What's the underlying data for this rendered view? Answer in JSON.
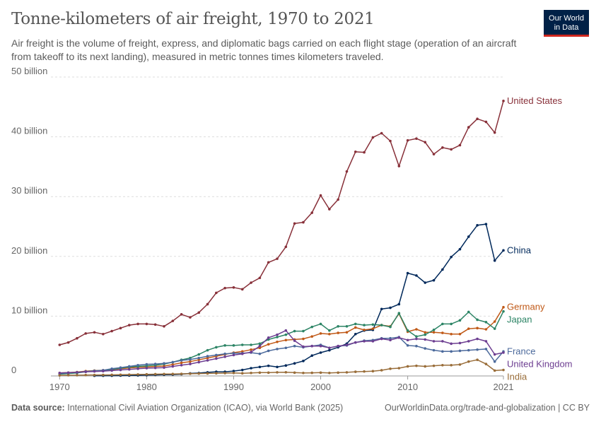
{
  "header": {
    "title": "Tonne-kilometers of air freight, 1970 to 2021",
    "subtitle": "Air freight is the volume of freight, express, and diplomatic bags carried on each flight stage (operation of an aircraft from takeoff to its next landing), measured in metric tonnes times kilometers traveled."
  },
  "logo": {
    "line1": "Our World",
    "line2": "in Data",
    "bg_color": "#002147",
    "accent_color": "#ce261e"
  },
  "footer": {
    "source_label": "Data source:",
    "source_text": "International Civil Aviation Organization (ICAO), via World Bank (2025)",
    "right_text": "OurWorldinData.org/trade-and-globalization | CC BY"
  },
  "chart_data": {
    "type": "line",
    "title": "Tonne-kilometers of air freight, 1970 to 2021",
    "xlabel": "",
    "ylabel": "",
    "xlim": [
      1969,
      2021
    ],
    "ylim": [
      0,
      50
    ],
    "yunit": "billion tonne-kilometers",
    "yticks": [
      0,
      10,
      20,
      30,
      40,
      50
    ],
    "ytick_labels": [
      "0",
      "10 billion",
      "20 billion",
      "30 billion",
      "40 billion",
      "50 billion"
    ],
    "xticks": [
      1970,
      1980,
      1990,
      2000,
      2010,
      2021
    ],
    "xtick_labels": [
      "1970",
      "1980",
      "1990",
      "2000",
      "2010",
      "2021"
    ],
    "grid": "horizontal dashed",
    "legend": "line-end labels",
    "series": [
      {
        "name": "United States",
        "color": "#883039",
        "x": [
          1970,
          1971,
          1972,
          1973,
          1974,
          1975,
          1976,
          1977,
          1978,
          1979,
          1980,
          1981,
          1982,
          1983,
          1984,
          1985,
          1986,
          1987,
          1988,
          1989,
          1990,
          1991,
          1992,
          1993,
          1994,
          1995,
          1996,
          1997,
          1998,
          1999,
          2000,
          2001,
          2002,
          2003,
          2004,
          2005,
          2006,
          2007,
          2008,
          2009,
          2010,
          2011,
          2012,
          2013,
          2014,
          2015,
          2016,
          2017,
          2018,
          2019,
          2020,
          2021
        ],
        "y": [
          5.2,
          5.6,
          6.3,
          7.1,
          7.3,
          7.0,
          7.5,
          8.0,
          8.5,
          8.7,
          8.7,
          8.6,
          8.3,
          9.2,
          10.3,
          9.8,
          10.6,
          12.0,
          13.9,
          14.7,
          14.8,
          14.5,
          15.6,
          16.4,
          19.0,
          19.6,
          21.6,
          25.5,
          25.7,
          27.3,
          30.2,
          27.9,
          29.5,
          34.2,
          37.5,
          37.4,
          39.9,
          40.6,
          39.3,
          35.1,
          39.4,
          39.7,
          39.1,
          37.1,
          38.2,
          37.9,
          38.6,
          41.6,
          43.0,
          42.5,
          40.7,
          46.0
        ]
      },
      {
        "name": "China",
        "color": "#00295b",
        "x": [
          1974,
          1975,
          1976,
          1977,
          1978,
          1979,
          1980,
          1981,
          1982,
          1983,
          1984,
          1985,
          1986,
          1987,
          1988,
          1989,
          1990,
          1991,
          1992,
          1993,
          1994,
          1995,
          1996,
          1997,
          1998,
          1999,
          2000,
          2001,
          2002,
          2003,
          2004,
          2005,
          2006,
          2007,
          2008,
          2009,
          2010,
          2011,
          2012,
          2013,
          2014,
          2015,
          2016,
          2017,
          2018,
          2019,
          2020,
          2021
        ],
        "y": [
          0.03,
          0.04,
          0.05,
          0.06,
          0.08,
          0.1,
          0.14,
          0.17,
          0.2,
          0.23,
          0.3,
          0.42,
          0.48,
          0.6,
          0.7,
          0.7,
          0.82,
          1.0,
          1.3,
          1.5,
          1.7,
          1.5,
          1.75,
          2.1,
          2.5,
          3.4,
          3.9,
          4.3,
          4.8,
          5.4,
          7.0,
          7.6,
          7.7,
          11.2,
          11.4,
          12.0,
          17.2,
          16.8,
          15.6,
          16.0,
          17.8,
          19.9,
          21.2,
          23.3,
          25.2,
          25.4,
          19.3,
          21.0
        ]
      },
      {
        "name": "Germany",
        "color": "#c05917",
        "x": [
          1970,
          1971,
          1972,
          1973,
          1974,
          1975,
          1976,
          1977,
          1978,
          1979,
          1980,
          1981,
          1982,
          1983,
          1984,
          1985,
          1986,
          1987,
          1988,
          1989,
          1990,
          1991,
          1992,
          1993,
          1994,
          1995,
          1996,
          1997,
          1998,
          1999,
          2000,
          2001,
          2002,
          2003,
          2004,
          2005,
          2006,
          2007,
          2008,
          2009,
          2010,
          2011,
          2012,
          2013,
          2014,
          2015,
          2016,
          2017,
          2018,
          2019,
          2020,
          2021
        ],
        "y": [
          0.5,
          0.55,
          0.65,
          0.8,
          0.9,
          0.95,
          1.05,
          1.2,
          1.35,
          1.45,
          1.5,
          1.6,
          1.65,
          1.9,
          2.2,
          2.4,
          2.7,
          3.0,
          3.3,
          3.6,
          3.9,
          4.1,
          4.4,
          4.7,
          5.3,
          5.7,
          6.0,
          6.1,
          6.2,
          6.6,
          7.1,
          7.0,
          7.2,
          7.3,
          8.1,
          7.7,
          7.9,
          8.5,
          8.3,
          10.4,
          7.4,
          7.8,
          7.3,
          7.3,
          7.2,
          7.0,
          7.0,
          7.9,
          8.0,
          7.8,
          9.1,
          11.5
        ]
      },
      {
        "name": "Japan",
        "color": "#2c8465",
        "x": [
          1970,
          1971,
          1972,
          1973,
          1974,
          1975,
          1976,
          1977,
          1978,
          1979,
          1980,
          1981,
          1982,
          1983,
          1984,
          1985,
          1986,
          1987,
          1988,
          1989,
          1990,
          1991,
          1992,
          1993,
          1994,
          1995,
          1996,
          1997,
          1998,
          1999,
          2000,
          2001,
          2002,
          2003,
          2004,
          2005,
          2006,
          2007,
          2008,
          2009,
          2010,
          2011,
          2012,
          2013,
          2014,
          2015,
          2016,
          2017,
          2018,
          2019,
          2020,
          2021
        ],
        "y": [
          0.3,
          0.4,
          0.5,
          0.7,
          0.85,
          0.9,
          1.1,
          1.3,
          1.5,
          1.6,
          1.7,
          1.8,
          2.0,
          2.3,
          2.7,
          3.0,
          3.6,
          4.3,
          4.8,
          5.1,
          5.1,
          5.2,
          5.2,
          5.4,
          6.1,
          6.5,
          6.9,
          7.5,
          7.5,
          8.2,
          8.7,
          7.6,
          8.3,
          8.3,
          8.7,
          8.5,
          8.6,
          8.5,
          8.2,
          10.5,
          7.6,
          6.6,
          6.9,
          7.7,
          8.7,
          8.7,
          9.3,
          10.7,
          9.4,
          9.0,
          7.9,
          10.8
        ]
      },
      {
        "name": "France",
        "color": "#4c6a9c",
        "x": [
          1970,
          1971,
          1972,
          1973,
          1974,
          1975,
          1976,
          1977,
          1978,
          1979,
          1980,
          1981,
          1982,
          1983,
          1984,
          1985,
          1986,
          1987,
          1988,
          1989,
          1990,
          1991,
          1992,
          1993,
          1994,
          1995,
          1996,
          1997,
          1998,
          1999,
          2000,
          2001,
          2002,
          2003,
          2004,
          2005,
          2006,
          2007,
          2008,
          2009,
          2010,
          2011,
          2012,
          2013,
          2014,
          2015,
          2016,
          2017,
          2018,
          2019,
          2020,
          2021
        ],
        "y": [
          0.4,
          0.5,
          0.6,
          0.75,
          0.85,
          0.95,
          1.2,
          1.4,
          1.6,
          1.8,
          1.95,
          2.0,
          2.1,
          2.3,
          2.6,
          2.75,
          3.0,
          3.3,
          3.5,
          3.7,
          3.8,
          3.8,
          3.9,
          3.7,
          4.2,
          4.5,
          4.7,
          5.0,
          4.8,
          5.0,
          5.2,
          4.7,
          5.0,
          5.1,
          5.6,
          5.9,
          6.0,
          6.3,
          6.3,
          6.5,
          5.1,
          5.0,
          4.6,
          4.3,
          4.1,
          4.1,
          4.2,
          4.3,
          4.4,
          4.5,
          2.4,
          4.1
        ]
      },
      {
        "name": "United Kingdom",
        "color": "#6d3e91",
        "x": [
          1970,
          1971,
          1972,
          1973,
          1974,
          1975,
          1976,
          1977,
          1978,
          1979,
          1980,
          1981,
          1982,
          1983,
          1984,
          1985,
          1986,
          1987,
          1988,
          1989,
          1990,
          1991,
          1992,
          1993,
          1994,
          1995,
          1996,
          1997,
          1998,
          1999,
          2000,
          2001,
          2002,
          2003,
          2004,
          2005,
          2006,
          2007,
          2008,
          2009,
          2010,
          2011,
          2012,
          2013,
          2014,
          2015,
          2016,
          2017,
          2018,
          2019,
          2020,
          2021
        ],
        "y": [
          0.5,
          0.55,
          0.6,
          0.7,
          0.75,
          0.8,
          0.9,
          1.0,
          1.1,
          1.2,
          1.3,
          1.35,
          1.4,
          1.6,
          1.8,
          2.0,
          2.3,
          2.6,
          2.9,
          3.2,
          3.5,
          3.7,
          4.0,
          5.0,
          6.4,
          6.9,
          7.6,
          5.9,
          4.9,
          5.0,
          5.0,
          4.7,
          5.0,
          5.2,
          5.6,
          5.8,
          5.8,
          6.2,
          6.0,
          6.4,
          6.0,
          6.2,
          6.1,
          5.8,
          5.8,
          5.4,
          5.5,
          5.8,
          6.2,
          5.8,
          3.6,
          3.9
        ]
      },
      {
        "name": "India",
        "color": "#996d39",
        "x": [
          1970,
          1971,
          1972,
          1973,
          1974,
          1975,
          1976,
          1977,
          1978,
          1979,
          1980,
          1981,
          1982,
          1983,
          1984,
          1985,
          1986,
          1987,
          1988,
          1989,
          1990,
          1991,
          1992,
          1993,
          1994,
          1995,
          1996,
          1997,
          1998,
          1999,
          2000,
          2001,
          2002,
          2003,
          2004,
          2005,
          2006,
          2007,
          2008,
          2009,
          2010,
          2011,
          2012,
          2013,
          2014,
          2015,
          2016,
          2017,
          2018,
          2019,
          2020,
          2021
        ],
        "y": [
          0.1,
          0.12,
          0.13,
          0.15,
          0.16,
          0.17,
          0.18,
          0.2,
          0.22,
          0.25,
          0.27,
          0.3,
          0.32,
          0.33,
          0.35,
          0.37,
          0.4,
          0.42,
          0.45,
          0.47,
          0.5,
          0.45,
          0.5,
          0.55,
          0.55,
          0.6,
          0.62,
          0.55,
          0.5,
          0.52,
          0.55,
          0.5,
          0.55,
          0.6,
          0.7,
          0.75,
          0.8,
          0.95,
          1.2,
          1.3,
          1.6,
          1.7,
          1.6,
          1.7,
          1.8,
          1.8,
          1.9,
          2.4,
          2.7,
          2.0,
          0.9,
          1.0
        ]
      }
    ],
    "end_labels": [
      {
        "series": "United States",
        "text": "United States"
      },
      {
        "series": "China",
        "text": "China"
      },
      {
        "series": "Germany",
        "text": "Germany"
      },
      {
        "series": "Japan",
        "text": "Japan"
      },
      {
        "series": "France",
        "text": "France"
      },
      {
        "series": "United Kingdom",
        "text": "United Kingdom"
      },
      {
        "series": "India",
        "text": "India"
      }
    ]
  }
}
